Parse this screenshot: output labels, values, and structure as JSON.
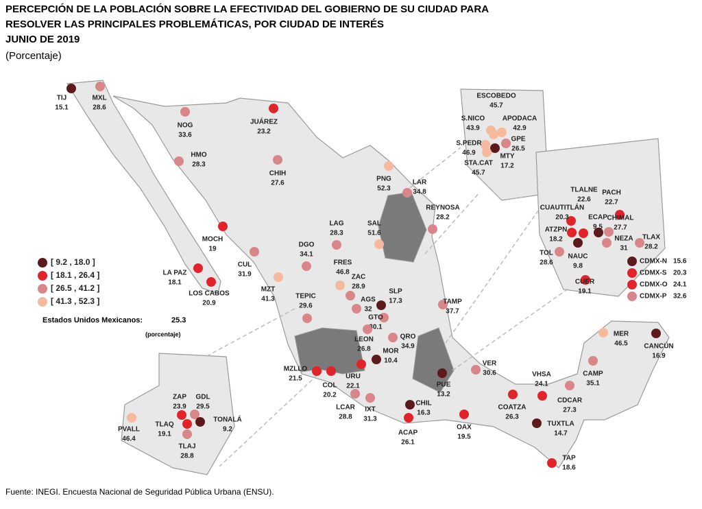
{
  "header": {
    "title": [
      "PERCEPCIÓN DE LA POBLACIÓN SOBRE LA EFECTIVIDAD DEL GOBIERNO DE SU CIUDAD PARA",
      "RESOLVER LAS PRINCIPALES PROBLEMÁTICAS, POR CIUDAD DE INTERÉS",
      "JUNIO DE 2019"
    ],
    "subtitle": "(Porcentaje)"
  },
  "legend": [
    {
      "label": "[   9.2 , 18.0 ]",
      "range": [
        9.2,
        18.0
      ],
      "color": "#5c1a1c"
    },
    {
      "label": "[ 18.1 , 26.4 ]",
      "range": [
        18.1,
        26.4
      ],
      "color": "#e0242a"
    },
    {
      "label": "[ 26.5 , 41.2 ]",
      "range": [
        26.5,
        41.2
      ],
      "color": "#d9868a"
    },
    {
      "label": "[ 41.3 , 52.3 ]",
      "range": [
        41.3,
        52.3
      ],
      "color": "#f7b99e"
    }
  ],
  "national": {
    "label": "Estados Unidos Mexicanos:",
    "value": 25.3,
    "unit": "(porcentaje)"
  },
  "cities": [
    {
      "name": "TIJ",
      "value": 15.1
    },
    {
      "name": "MXL",
      "value": 28.6
    },
    {
      "name": "NOG",
      "value": 33.6
    },
    {
      "name": "JUÁREZ",
      "value": 23.2
    },
    {
      "name": "HMO",
      "value": 28.3
    },
    {
      "name": "CHIH",
      "value": 27.6
    },
    {
      "name": "MOCH",
      "value": 19.0
    },
    {
      "name": "LA PAZ",
      "value": 18.1
    },
    {
      "name": "LOS CABOS",
      "value": 20.9
    },
    {
      "name": "CUL",
      "value": 31.9
    },
    {
      "name": "MZT",
      "value": 41.3
    },
    {
      "name": "DGO",
      "value": 34.1
    },
    {
      "name": "TEPIC",
      "value": 29.6
    },
    {
      "name": "LAG",
      "value": 28.3
    },
    {
      "name": "SAL",
      "value": 51.6
    },
    {
      "name": "PNG",
      "value": 52.3
    },
    {
      "name": "LAR",
      "value": 34.8
    },
    {
      "name": "REYNOSA",
      "value": 28.2
    },
    {
      "name": "FRES",
      "value": 46.8
    },
    {
      "name": "ZAC",
      "value": 28.9
    },
    {
      "name": "SLP",
      "value": 17.3
    },
    {
      "name": "AGS",
      "value": 32.0
    },
    {
      "name": "TAMP",
      "value": 37.7
    },
    {
      "name": "GTO",
      "value": 30.1
    },
    {
      "name": "LEON",
      "value": 26.8
    },
    {
      "name": "QRO",
      "value": 34.9
    },
    {
      "name": "MOR",
      "value": 10.4
    },
    {
      "name": "MZLLO",
      "value": 21.5
    },
    {
      "name": "COL",
      "value": 20.2
    },
    {
      "name": "URU",
      "value": 22.1
    },
    {
      "name": "LCAR",
      "value": 28.8
    },
    {
      "name": "IXT",
      "value": 31.3
    },
    {
      "name": "CHIL",
      "value": 16.3
    },
    {
      "name": "ACAP",
      "value": 26.1
    },
    {
      "name": "PUE",
      "value": 13.2
    },
    {
      "name": "VER",
      "value": 30.6
    },
    {
      "name": "OAX",
      "value": 19.5
    },
    {
      "name": "COATZA",
      "value": 26.3
    },
    {
      "name": "VHSA",
      "value": 24.1
    },
    {
      "name": "TUXTLA",
      "value": 14.7
    },
    {
      "name": "TAP",
      "value": 18.6
    },
    {
      "name": "CDCAR",
      "value": 27.3
    },
    {
      "name": "CAMP",
      "value": 35.1
    },
    {
      "name": "MER",
      "value": 46.5
    },
    {
      "name": "CANCÚN",
      "value": 16.9
    },
    {
      "name": "ESCOBEDO",
      "value": 45.7
    },
    {
      "name": "S.NICO",
      "value": 43.9
    },
    {
      "name": "APODACA",
      "value": 42.9
    },
    {
      "name": "GPE",
      "value": 26.5
    },
    {
      "name": "S.PEDR",
      "value": 46.9
    },
    {
      "name": "MTY",
      "value": 17.2
    },
    {
      "name": "STA.CAT",
      "value": 45.7
    },
    {
      "name": "TLALNE",
      "value": 22.6
    },
    {
      "name": "PACH",
      "value": 22.7
    },
    {
      "name": "CUAUTITLÁN",
      "value": 20.3
    },
    {
      "name": "ECAP",
      "value": 9.5
    },
    {
      "name": "CHIMAL",
      "value": 27.7
    },
    {
      "name": "ATZPN",
      "value": 18.2
    },
    {
      "name": "NEZA",
      "value": 31.0
    },
    {
      "name": "TLAX",
      "value": 28.2
    },
    {
      "name": "NAUC",
      "value": 9.8
    },
    {
      "name": "TOL",
      "value": 28.6
    },
    {
      "name": "CUER",
      "value": 19.1
    },
    {
      "name": "CDMX-N",
      "value": 15.6
    },
    {
      "name": "CDMX-S",
      "value": 20.3
    },
    {
      "name": "CDMX-O",
      "value": 24.1
    },
    {
      "name": "CDMX-P",
      "value": 32.6
    },
    {
      "name": "ZAP",
      "value": 23.9
    },
    {
      "name": "GDL",
      "value": 29.5
    },
    {
      "name": "TLAQ",
      "value": 19.1
    },
    {
      "name": "TONALÁ",
      "value": 9.2
    },
    {
      "name": "TLAJ",
      "value": 28.8
    },
    {
      "name": "PVALL",
      "value": 46.4
    }
  ],
  "source": "Fuente: INEGI. Encuesta Nacional de Seguridad Pública Urbana (ENSU)."
}
